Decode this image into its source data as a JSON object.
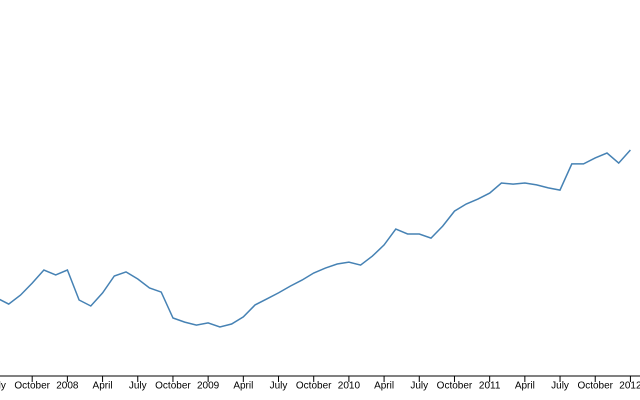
{
  "chart_data": {
    "type": "line",
    "x": [
      "2007-07",
      "2007-08",
      "2007-09",
      "2007-10",
      "2007-11",
      "2007-12",
      "2008-01",
      "2008-02",
      "2008-03",
      "2008-04",
      "2008-05",
      "2008-06",
      "2008-07",
      "2008-08",
      "2008-09",
      "2008-10",
      "2008-11",
      "2008-12",
      "2009-01",
      "2009-02",
      "2009-03",
      "2009-04",
      "2009-05",
      "2009-06",
      "2009-07",
      "2009-08",
      "2009-09",
      "2009-10",
      "2009-11",
      "2009-12",
      "2010-01",
      "2010-02",
      "2010-03",
      "2010-04",
      "2010-05",
      "2010-06",
      "2010-07",
      "2010-08",
      "2010-09",
      "2010-10",
      "2010-11",
      "2010-12",
      "2011-01",
      "2011-02",
      "2011-03",
      "2011-04",
      "2011-05",
      "2011-06",
      "2011-07",
      "2011-08",
      "2011-09",
      "2011-10",
      "2011-11",
      "2011-12",
      "2012-01"
    ],
    "values": [
      20.5,
      18.9,
      21.3,
      24.5,
      28,
      26.7,
      28,
      20,
      18.4,
      21.9,
      26.4,
      27.5,
      25.6,
      23.2,
      22.1,
      15.2,
      14.1,
      13.3,
      13.9,
      12.8,
      13.6,
      15.5,
      18.7,
      20.3,
      21.9,
      23.7,
      25.3,
      27.2,
      28.5,
      29.6,
      30.1,
      29.3,
      31.7,
      34.7,
      38.9,
      37.6,
      37.6,
      36.5,
      39.7,
      43.7,
      45.6,
      46.9,
      48.5,
      51.2,
      50.9,
      51.2,
      50.7,
      49.9,
      49.3,
      56.3,
      56.3,
      57.9,
      59.2,
      56.5,
      60
    ],
    "color": "#4682b4",
    "ylim": [
      0,
      100
    ],
    "xticks": [
      {
        "value": "2007-07",
        "label": "July"
      },
      {
        "value": "2007-10",
        "label": "October"
      },
      {
        "value": "2008-01",
        "label": "2008"
      },
      {
        "value": "2008-04",
        "label": "April"
      },
      {
        "value": "2008-07",
        "label": "July"
      },
      {
        "value": "2008-10",
        "label": "October"
      },
      {
        "value": "2009-01",
        "label": "2009"
      },
      {
        "value": "2009-04",
        "label": "April"
      },
      {
        "value": "2009-07",
        "label": "July"
      },
      {
        "value": "2009-10",
        "label": "October"
      },
      {
        "value": "2010-01",
        "label": "2010"
      },
      {
        "value": "2010-04",
        "label": "April"
      },
      {
        "value": "2010-07",
        "label": "July"
      },
      {
        "value": "2010-10",
        "label": "October"
      },
      {
        "value": "2011-01",
        "label": "2011"
      },
      {
        "value": "2011-04",
        "label": "April"
      },
      {
        "value": "2011-07",
        "label": "July"
      },
      {
        "value": "2011-10",
        "label": "October"
      },
      {
        "value": "2012-01",
        "label": "2012"
      }
    ]
  }
}
